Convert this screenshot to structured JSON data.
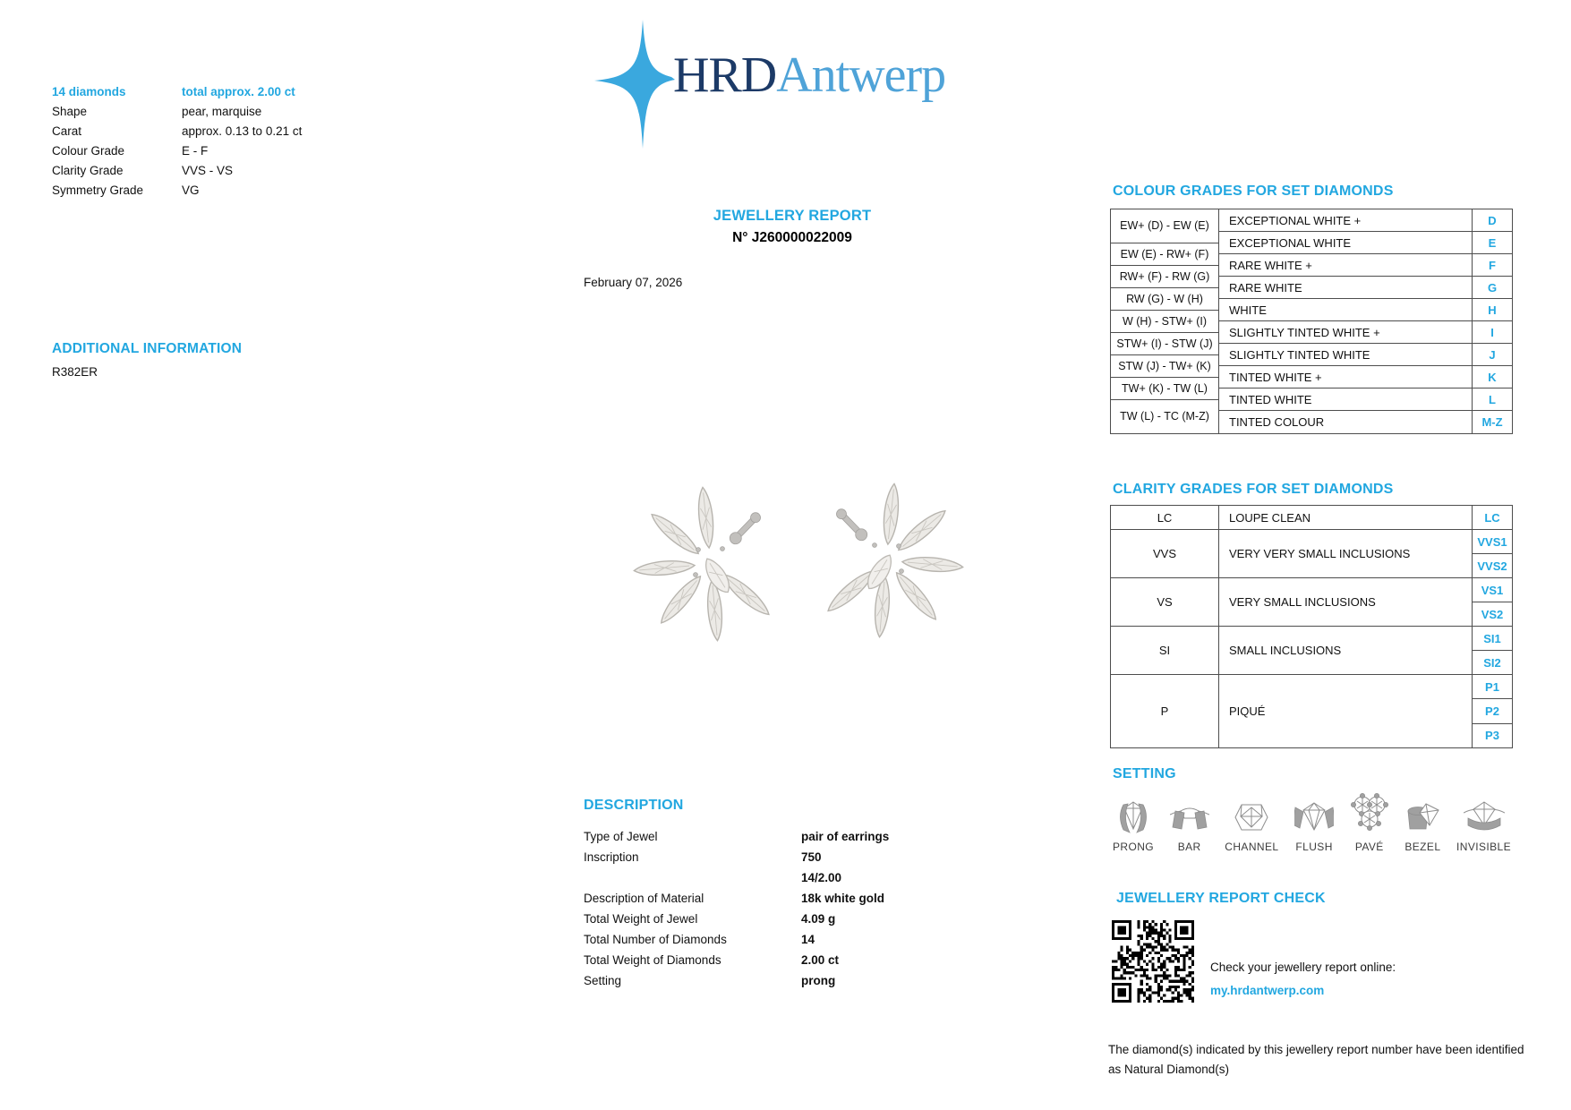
{
  "colors": {
    "accent": "#22a7e0",
    "logo_navy": "#1c3a67",
    "logo_blue": "#4fa3d8",
    "border": "#4d4d4d",
    "metal_gray": "#a0a0a0"
  },
  "logo": {
    "brand_dark": "HRD",
    "brand_light": "Antwerp",
    "star_icon": "four-point-star"
  },
  "summary": {
    "count": "14 diamonds",
    "total": "total approx. 2.00 ct",
    "rows": [
      {
        "label": "Shape",
        "value": "pear, marquise"
      },
      {
        "label": "Carat",
        "value": "approx. 0.13 to 0.21 ct"
      },
      {
        "label": "Colour Grade",
        "value": "E - F"
      },
      {
        "label": "Clarity Grade",
        "value": "VVS - VS"
      },
      {
        "label": "Symmetry Grade",
        "value": "VG"
      }
    ]
  },
  "report": {
    "title": "JEWELLERY REPORT",
    "number": "N° J260000022009",
    "date": "February 07, 2026"
  },
  "additional_info": {
    "heading": "ADDITIONAL INFORMATION",
    "value": "R382ER"
  },
  "photo": {
    "alt": "pair of pear and marquise diamond cluster earrings in white gold"
  },
  "description": {
    "heading": "DESCRIPTION",
    "rows": [
      {
        "label": "Type of Jewel",
        "value": "pair of earrings"
      },
      {
        "label": "Inscription",
        "value": "750",
        "value2": "14/2.00"
      },
      {
        "label": "Description of Material",
        "value": "18k white gold"
      },
      {
        "label": "Total Weight of Jewel",
        "value": "4.09 g"
      },
      {
        "label": "Total Number of Diamonds",
        "value": "14"
      },
      {
        "label": "Total Weight of Diamonds",
        "value": "2.00 ct"
      },
      {
        "label": "Setting",
        "value": "prong"
      }
    ]
  },
  "colour_grades": {
    "heading": "COLOUR GRADES FOR SET DIAMONDS",
    "ranges": [
      "EW+ (D) - EW (E)",
      "EW (E) - RW+ (F)",
      "RW+ (F) - RW (G)",
      "RW (G) - W (H)",
      "W (H) - STW+ (I)",
      "STW+ (I) - STW (J)",
      "STW (J) - TW+ (K)",
      "TW+ (K) - TW (L)",
      "TW (L) - TC (M-Z)"
    ],
    "grades": [
      {
        "name": "EXCEPTIONAL WHITE +",
        "letter": "D"
      },
      {
        "name": "EXCEPTIONAL WHITE",
        "letter": "E"
      },
      {
        "name": "RARE WHITE +",
        "letter": "F"
      },
      {
        "name": "RARE WHITE",
        "letter": "G"
      },
      {
        "name": "WHITE",
        "letter": "H"
      },
      {
        "name": "SLIGHTLY TINTED WHITE +",
        "letter": "I"
      },
      {
        "name": "SLIGHTLY TINTED WHITE",
        "letter": "J"
      },
      {
        "name": "TINTED WHITE +",
        "letter": "K"
      },
      {
        "name": "TINTED WHITE",
        "letter": "L"
      },
      {
        "name": "TINTED COLOUR",
        "letter": "M-Z"
      }
    ]
  },
  "clarity_grades": {
    "heading": "CLARITY GRADES FOR SET DIAMONDS",
    "rows": [
      {
        "abbr": "LC",
        "name": "LOUPE CLEAN",
        "letter1": "LC"
      },
      {
        "abbr": "VVS",
        "name": "VERY VERY SMALL INCLUSIONS",
        "letter1": "VVS1",
        "letter2": "VVS2"
      },
      {
        "abbr": "VS",
        "name": "VERY SMALL INCLUSIONS",
        "letter1": "VS1",
        "letter2": "VS2"
      },
      {
        "abbr": "SI",
        "name": "SMALL INCLUSIONS",
        "letter1": "SI1",
        "letter2": "SI2"
      },
      {
        "abbr": "P",
        "name": "PIQUÉ",
        "letter1": "P1",
        "letter2": "P2",
        "letter3": "P3"
      }
    ]
  },
  "setting": {
    "heading": "SETTING",
    "types": [
      {
        "label": "PRONG",
        "icon": "prong-setting-icon"
      },
      {
        "label": "BAR",
        "icon": "bar-setting-icon"
      },
      {
        "label": "CHANNEL",
        "icon": "channel-setting-icon"
      },
      {
        "label": "FLUSH",
        "icon": "flush-setting-icon"
      },
      {
        "label": "PAVÉ",
        "icon": "pave-setting-icon"
      },
      {
        "label": "BEZEL",
        "icon": "bezel-setting-icon"
      },
      {
        "label": "INVISIBLE",
        "icon": "invisible-setting-icon"
      }
    ]
  },
  "report_check": {
    "heading": "JEWELLERY REPORT CHECK",
    "line1": "Check your jewellery report online:",
    "link": "my.hrdantwerp.com",
    "qr_icon": "qr-code"
  },
  "disclaimer": "The diamond(s) indicated by this jewellery report number have been identified as Natural Diamond(s)"
}
